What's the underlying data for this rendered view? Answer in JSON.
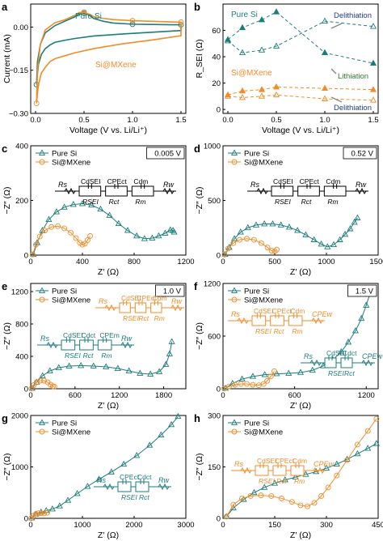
{
  "colors": {
    "pure": "#1b7d7b",
    "mx": "#f28c28",
    "axis": "#000000",
    "arrow": "#8a8a8a"
  },
  "chart_data": [
    {
      "panel": "a",
      "type": "line",
      "xlabel": "Voltage (V vs. Li/Li⁺)",
      "ylabel": "Current (mA)",
      "xlim": [
        -0.05,
        1.55
      ],
      "ylim": [
        -0.3,
        0.08
      ],
      "xticks": [
        0.0,
        0.5,
        1.0,
        1.5
      ],
      "yticks": [
        -0.3,
        -0.15,
        0.0
      ],
      "ytick_labels": [
        "−0.30",
        "−0.15",
        "0.00"
      ],
      "series": [
        {
          "name": "Pure Si",
          "color": "pure",
          "marker": "circle",
          "x": [
            0.01,
            0.02,
            0.05,
            0.1,
            0.2,
            0.3,
            0.4,
            0.45,
            0.5,
            0.55,
            0.6,
            0.7,
            0.8,
            1.0,
            1.2,
            1.4,
            1.5,
            1.5,
            1.2,
            0.9,
            0.6,
            0.4,
            0.3,
            0.2,
            0.15,
            0.1,
            0.06,
            0.03,
            0.02,
            0.01
          ],
          "y": [
            -0.2,
            -0.12,
            -0.06,
            -0.02,
            0.005,
            0.02,
            0.035,
            0.045,
            0.048,
            0.042,
            0.03,
            0.02,
            0.014,
            0.01,
            0.009,
            0.008,
            0.008,
            -0.012,
            -0.018,
            -0.024,
            -0.031,
            -0.04,
            -0.046,
            -0.053,
            -0.062,
            -0.075,
            -0.095,
            -0.13,
            -0.16,
            -0.2
          ],
          "markers_x": [
            0.01,
            0.5,
            1.0,
            1.5
          ],
          "markers_y": [
            -0.2,
            0.048,
            0.01,
            0.008
          ]
        },
        {
          "name": "Si@MXene",
          "color": "mx",
          "marker": "circle",
          "x": [
            0.01,
            0.02,
            0.05,
            0.1,
            0.2,
            0.3,
            0.4,
            0.45,
            0.5,
            0.55,
            0.6,
            0.7,
            0.8,
            1.0,
            1.2,
            1.4,
            1.5,
            1.5,
            1.2,
            0.9,
            0.6,
            0.4,
            0.3,
            0.2,
            0.15,
            0.1,
            0.06,
            0.03,
            0.02,
            0.01
          ],
          "y": [
            -0.265,
            -0.15,
            -0.06,
            -0.01,
            0.015,
            0.025,
            0.04,
            0.05,
            0.052,
            0.045,
            0.036,
            0.03,
            0.026,
            0.022,
            0.02,
            0.018,
            0.017,
            -0.03,
            -0.045,
            -0.058,
            -0.075,
            -0.09,
            -0.1,
            -0.11,
            -0.12,
            -0.14,
            -0.16,
            -0.2,
            -0.23,
            -0.265
          ],
          "markers_x": [
            0.01,
            0.5,
            1.0,
            1.5
          ],
          "markers_y": [
            -0.265,
            0.052,
            0.022,
            0.017
          ]
        }
      ],
      "labels": {
        "pure": "Pure Si",
        "mx": "Si@MXene"
      }
    },
    {
      "panel": "b",
      "type": "line",
      "xlabel": "Voltage (V vs. Li/Li⁺)",
      "ylabel": "R_SEI (Ω)",
      "xlim": [
        -0.05,
        1.55
      ],
      "ylim": [
        -3,
        80
      ],
      "xticks": [
        0.0,
        0.5,
        1.0,
        1.5
      ],
      "yticks": [
        0,
        20,
        40,
        60
      ],
      "series": [
        {
          "name": "Pure Si Lithiation",
          "color": "pure",
          "marker": "tri-filled",
          "x": [
            0.0,
            0.15,
            0.35,
            0.5,
            1.0,
            1.5
          ],
          "y": [
            53,
            62,
            68,
            74,
            43,
            35
          ]
        },
        {
          "name": "Pure Si Delithiation",
          "color": "pure",
          "marker": "tri-open",
          "x": [
            0.0,
            0.15,
            0.35,
            0.5,
            1.0,
            1.5
          ],
          "y": [
            52,
            43,
            45,
            48,
            67,
            63
          ]
        },
        {
          "name": "Si@MXene Lithiation",
          "color": "mx",
          "marker": "tri-filled",
          "x": [
            0.0,
            0.15,
            0.35,
            0.5,
            1.0,
            1.5
          ],
          "y": [
            11,
            14,
            15,
            17,
            16,
            15
          ]
        },
        {
          "name": "Si@MXene Delithiation",
          "color": "mx",
          "marker": "tri-open",
          "x": [
            0.0,
            0.15,
            0.35,
            0.5,
            1.0,
            1.5
          ],
          "y": [
            10,
            9,
            10,
            11,
            8,
            7
          ]
        }
      ],
      "labels": {
        "pure": "Pure Si",
        "mx": "Si@MXene",
        "deli1": "Delithiation",
        "lith": "Lithiation",
        "deli2": "Delithiation"
      }
    },
    {
      "panel": "c",
      "type": "scatter",
      "xlabel": "Z′ (Ω)",
      "ylabel": "−Z″ (Ω)",
      "xlim": [
        0,
        1200
      ],
      "ylim": [
        0,
        400
      ],
      "xticks": [
        0,
        400,
        800,
        1200
      ],
      "yticks": [
        0,
        200,
        400
      ],
      "tag": "0.005 V",
      "circuit": [
        "Rs",
        "CdSEI",
        "RSEI",
        "CPEct",
        "Rct",
        "Cdm",
        "Rm",
        "Rw"
      ],
      "series": [
        {
          "name": "Pure Si",
          "color": "pure",
          "marker": "tri-open",
          "x": [
            20,
            50,
            90,
            140,
            200,
            260,
            330,
            400,
            470,
            540,
            610,
            680,
            750,
            820,
            880,
            940,
            990,
            1040,
            1080,
            1100,
            1110
          ],
          "y": [
            2,
            45,
            90,
            130,
            158,
            175,
            185,
            188,
            183,
            168,
            145,
            115,
            90,
            70,
            60,
            62,
            70,
            80,
            92,
            90,
            84
          ]
        },
        {
          "name": "Si@MXene",
          "color": "mx",
          "marker": "circle-open",
          "x": [
            15,
            40,
            70,
            110,
            160,
            210,
            260,
            310,
            350,
            380,
            400,
            420,
            440,
            460
          ],
          "y": [
            2,
            38,
            68,
            90,
            103,
            106,
            98,
            82,
            62,
            45,
            38,
            42,
            55,
            70
          ]
        }
      ]
    },
    {
      "panel": "d",
      "type": "scatter",
      "xlabel": "Z′ (Ω)",
      "ylabel": "−Z″ (Ω)",
      "xlim": [
        0,
        1500
      ],
      "ylim": [
        0,
        1000
      ],
      "xticks": [
        0,
        500,
        1000,
        1500
      ],
      "yticks": [
        0,
        500,
        1000
      ],
      "tag": "0.52 V",
      "circuit": [
        "Rs",
        "CdSEI",
        "RSEI",
        "CPEct",
        "Rct",
        "Cdm",
        "Rm",
        "Rw"
      ],
      "series": [
        {
          "name": "Pure Si",
          "color": "pure",
          "marker": "tri-open",
          "x": [
            20,
            60,
            110,
            170,
            240,
            320,
            400,
            480,
            560,
            640,
            720,
            800,
            880,
            950,
            1010,
            1070,
            1130,
            1180,
            1230,
            1270,
            1300
          ],
          "y": [
            5,
            70,
            150,
            210,
            250,
            275,
            285,
            285,
            275,
            255,
            225,
            185,
            140,
            100,
            75,
            95,
            140,
            190,
            240,
            300,
            340
          ]
        },
        {
          "name": "Si@MXene",
          "color": "mx",
          "marker": "circle-open",
          "x": [
            15,
            50,
            100,
            160,
            230,
            300,
            370,
            430,
            470,
            500,
            520
          ],
          "y": [
            5,
            60,
            110,
            140,
            150,
            140,
            110,
            70,
            40,
            35,
            50
          ]
        }
      ]
    },
    {
      "panel": "e",
      "type": "scatter",
      "xlabel": "Z′ (Ω)",
      "ylabel": "−Z″ (Ω)",
      "xlim": [
        0,
        2100
      ],
      "ylim": [
        0,
        1300
      ],
      "xticks": [
        0,
        600,
        1200,
        1800
      ],
      "yticks": [
        0,
        400,
        800,
        1200
      ],
      "tag": "1.0 V",
      "circuit_mx": [
        "Rs",
        "CdSEI",
        "RSEI",
        "CPEct",
        "Rct",
        "Cdm",
        "Rm",
        "Rw"
      ],
      "circuit_pure": [
        "Rs",
        "CdSEI",
        "RSEI",
        "Cdct",
        "Rct",
        "CPEm",
        "Rm",
        "Rw"
      ],
      "series": [
        {
          "name": "Pure Si",
          "color": "pure",
          "marker": "tri-open",
          "x": [
            20,
            80,
            160,
            260,
            380,
            520,
            680,
            850,
            1020,
            1180,
            1330,
            1480,
            1620,
            1740,
            1830,
            1880,
            1910
          ],
          "y": [
            5,
            80,
            160,
            220,
            260,
            280,
            285,
            280,
            270,
            250,
            220,
            190,
            180,
            210,
            300,
            430,
            580
          ]
        },
        {
          "name": "Si@MXene",
          "color": "mx",
          "marker": "circle-open",
          "x": [
            10,
            40,
            80,
            130,
            180,
            230,
            270,
            300,
            320
          ],
          "y": [
            2,
            45,
            80,
            100,
            100,
            80,
            50,
            30,
            25
          ]
        }
      ],
      "legend": [
        "Pure Si",
        "Si@MXene"
      ]
    },
    {
      "panel": "f",
      "type": "scatter",
      "xlabel": "Z′ (Ω)",
      "ylabel": "−Z″ (Ω)",
      "xlim": [
        0,
        1300
      ],
      "ylim": [
        0,
        1200
      ],
      "xticks": [
        0,
        600,
        1200
      ],
      "yticks": [
        0,
        600,
        1200
      ],
      "tag": "1.5 V",
      "circuit_mx": [
        "Rs",
        "CdSEI",
        "RSEI",
        "CPEct",
        "Rct",
        "Cdm",
        "Rm",
        "CPEw"
      ],
      "circuit_pure": [
        "Rs",
        "CdSEI",
        "RSEI",
        "Cdct",
        "Rct",
        "CPEw"
      ],
      "series": [
        {
          "name": "Pure Si",
          "color": "pure",
          "marker": "tri-open",
          "x": [
            20,
            80,
            160,
            250,
            350,
            450,
            550,
            650,
            750,
            840,
            920,
            990,
            1050,
            1110,
            1160,
            1200,
            1240
          ],
          "y": [
            5,
            60,
            110,
            140,
            160,
            170,
            175,
            185,
            210,
            260,
            330,
            420,
            530,
            660,
            800,
            950,
            1120
          ]
        },
        {
          "name": "Si@MXene",
          "color": "mx",
          "marker": "circle-open",
          "x": [
            10,
            50,
            100,
            150,
            200,
            250,
            300,
            340,
            370,
            400,
            430
          ],
          "y": [
            2,
            25,
            45,
            55,
            55,
            45,
            40,
            55,
            90,
            140,
            200
          ]
        }
      ],
      "legend": [
        "Pure Si",
        "Si@MXene"
      ]
    },
    {
      "panel": "g",
      "type": "scatter",
      "xlabel": "Z′ (Ω)",
      "ylabel": "−Z″ (Ω)",
      "xlim": [
        0,
        3000
      ],
      "ylim": [
        0,
        2000
      ],
      "xticks": [
        0,
        1000,
        2000,
        3000
      ],
      "yticks": [
        0,
        1000,
        2000
      ],
      "circuit": [
        "Rs",
        "CPEct",
        "RSEI",
        "Cdct",
        "Rct",
        "Rw"
      ],
      "series": [
        {
          "name": "Pure Si",
          "color": "pure",
          "marker": "tri-open",
          "x": [
            20,
            100,
            200,
            300,
            420,
            560,
            720,
            900,
            1100,
            1320,
            1560,
            1800,
            2050,
            2300,
            2520,
            2720,
            2850
          ],
          "y": [
            5,
            80,
            120,
            150,
            180,
            240,
            350,
            480,
            620,
            760,
            900,
            1050,
            1220,
            1420,
            1620,
            1820,
            1980
          ]
        },
        {
          "name": "Si@MXene",
          "color": "mx",
          "marker": "circle-open",
          "x": [
            10,
            50,
            100,
            150,
            200,
            260,
            320
          ],
          "y": [
            2,
            50,
            85,
            100,
            100,
            95,
            110
          ]
        }
      ],
      "legend": [
        "Pure Si",
        "Si@MXene"
      ]
    },
    {
      "panel": "h",
      "type": "scatter",
      "xlabel": "Z′ (Ω)",
      "ylabel": "−Z″ (Ω)",
      "xlim": [
        0,
        450
      ],
      "ylim": [
        0,
        300
      ],
      "xticks": [
        0,
        150,
        300,
        450
      ],
      "yticks": [
        0,
        150,
        300
      ],
      "circuit": [
        "Rs",
        "CdSEI",
        "RSEI",
        "CPEct",
        "Rct",
        "Cdm",
        "Rm",
        "CPEw"
      ],
      "series": [
        {
          "name": "Pure Si",
          "color": "pure",
          "marker": "tri-open",
          "x": [
            10,
            30,
            60,
            90,
            120,
            150,
            180,
            210,
            240,
            270,
            300,
            330,
            360,
            390,
            420,
            445
          ],
          "y": [
            5,
            30,
            55,
            75,
            90,
            102,
            112,
            120,
            128,
            136,
            146,
            158,
            172,
            188,
            204,
            218
          ]
        },
        {
          "name": "Si@MXene",
          "color": "mx",
          "marker": "circle-open",
          "x": [
            10,
            30,
            55,
            80,
            110,
            140,
            170,
            200,
            225,
            245,
            265,
            285,
            305,
            330,
            360,
            390,
            420,
            445
          ],
          "y": [
            5,
            40,
            58,
            65,
            67,
            65,
            58,
            48,
            38,
            35,
            45,
            65,
            90,
            125,
            170,
            215,
            255,
            290
          ]
        }
      ],
      "legend": [
        "Pure Si",
        "Si@MXene"
      ]
    }
  ]
}
